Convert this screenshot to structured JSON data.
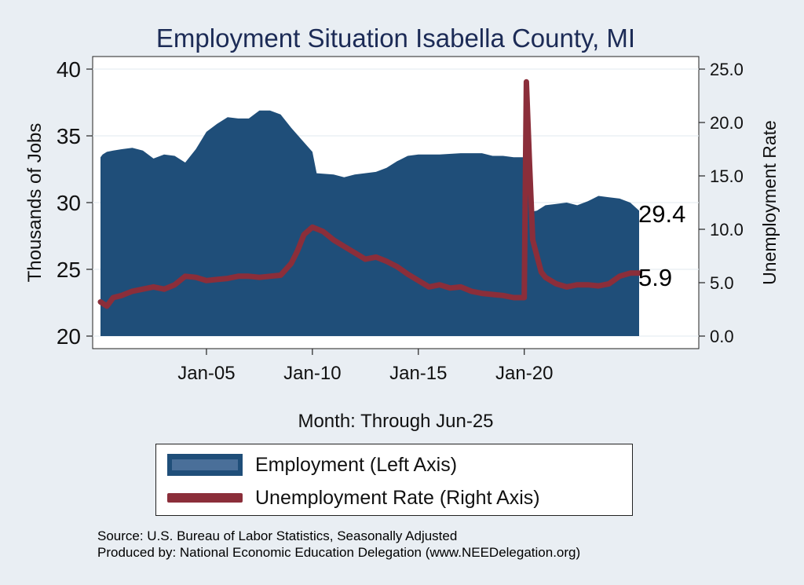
{
  "chart_data": {
    "type": "area+line",
    "title": "Employment Situation Isabella  County, MI",
    "xlabel": "Month: Through Jun-25",
    "ylabel_left": "Thousands of Jobs",
    "ylabel_right": "Unemployment Rate",
    "x_range": [
      2000.0,
      2025.42
    ],
    "x_ticks": [
      {
        "value": 2005.0,
        "label": "Jan-05"
      },
      {
        "value": 2010.0,
        "label": "Jan-10"
      },
      {
        "value": 2015.0,
        "label": "Jan-15"
      },
      {
        "value": 2020.0,
        "label": "Jan-20"
      }
    ],
    "ylim_left": [
      20,
      40
    ],
    "yticks_left": [
      20,
      25,
      30,
      35,
      40
    ],
    "ylim_right": [
      0,
      25
    ],
    "yticks_right": [
      "0.0",
      "5.0",
      "10.0",
      "15.0",
      "20.0",
      "25.0"
    ],
    "grid": true,
    "series": [
      {
        "name": "Employment (Left Axis)",
        "axis": "left",
        "kind": "area",
        "color": "#1f4e79",
        "x": [
          2000.0,
          2000.1,
          2000.3,
          2000.6,
          2001.0,
          2001.5,
          2002.0,
          2002.5,
          2003.0,
          2003.5,
          2004.0,
          2004.5,
          2005.0,
          2005.5,
          2006.0,
          2006.5,
          2007.0,
          2007.5,
          2008.0,
          2008.5,
          2009.0,
          2009.5,
          2010.0,
          2010.2,
          2011.0,
          2011.5,
          2012.0,
          2013.0,
          2013.5,
          2014.0,
          2014.5,
          2015.0,
          2016.0,
          2017.0,
          2018.0,
          2018.5,
          2019.0,
          2019.5,
          2020.0,
          2020.2,
          2020.3,
          2020.6,
          2021.0,
          2021.5,
          2022.0,
          2022.5,
          2023.0,
          2023.5,
          2024.0,
          2024.5,
          2025.0,
          2025.42
        ],
        "values": [
          33.4,
          33.6,
          33.8,
          33.9,
          34.0,
          34.1,
          33.9,
          33.3,
          33.6,
          33.5,
          33.0,
          34.0,
          35.3,
          35.9,
          36.4,
          36.3,
          36.3,
          36.9,
          36.9,
          36.6,
          35.6,
          34.7,
          33.8,
          32.2,
          32.1,
          31.9,
          32.1,
          32.3,
          32.6,
          33.1,
          33.5,
          33.6,
          33.6,
          33.7,
          33.7,
          33.5,
          33.5,
          33.4,
          33.4,
          31.2,
          29.3,
          29.4,
          29.8,
          29.9,
          30.0,
          29.8,
          30.1,
          30.5,
          30.4,
          30.3,
          30.0,
          29.4
        ],
        "end_label": "29.4"
      },
      {
        "name": "Unemployment Rate (Right Axis)",
        "axis": "right",
        "kind": "line",
        "color": "#8b2e3a",
        "x": [
          2000.0,
          2000.3,
          2000.6,
          2001.0,
          2001.5,
          2002.0,
          2002.5,
          2003.0,
          2003.5,
          2004.0,
          2004.5,
          2005.0,
          2005.5,
          2006.0,
          2006.5,
          2007.0,
          2007.5,
          2008.0,
          2008.5,
          2009.0,
          2009.3,
          2009.6,
          2010.0,
          2010.5,
          2011.0,
          2011.5,
          2012.0,
          2012.5,
          2013.0,
          2013.5,
          2014.0,
          2014.5,
          2015.0,
          2015.5,
          2016.0,
          2016.5,
          2017.0,
          2017.5,
          2018.0,
          2018.5,
          2019.0,
          2019.5,
          2020.0,
          2020.1,
          2020.25,
          2020.4,
          2020.6,
          2020.8,
          2021.0,
          2021.5,
          2022.0,
          2022.5,
          2023.0,
          2023.5,
          2024.0,
          2024.5,
          2025.0,
          2025.42
        ],
        "values": [
          3.2,
          2.8,
          3.6,
          3.8,
          4.2,
          4.4,
          4.6,
          4.4,
          4.8,
          5.6,
          5.5,
          5.2,
          5.3,
          5.4,
          5.6,
          5.6,
          5.5,
          5.6,
          5.7,
          6.8,
          8.0,
          9.5,
          10.2,
          9.8,
          9.0,
          8.4,
          7.8,
          7.2,
          7.4,
          7.0,
          6.5,
          5.8,
          5.2,
          4.6,
          4.8,
          4.5,
          4.6,
          4.2,
          4.0,
          3.9,
          3.8,
          3.6,
          3.6,
          23.8,
          16.0,
          9.0,
          7.5,
          6.0,
          5.5,
          4.9,
          4.6,
          4.8,
          4.8,
          4.7,
          4.9,
          5.6,
          5.9,
          5.9
        ],
        "end_label": "5.9"
      }
    ]
  },
  "source_line": "Source: U.S. Bureau of Labor Statistics, Seasonally Adjusted",
  "produced_line": "Produced by: National Economic Education Delegation (www.NEEDelegation.org)"
}
